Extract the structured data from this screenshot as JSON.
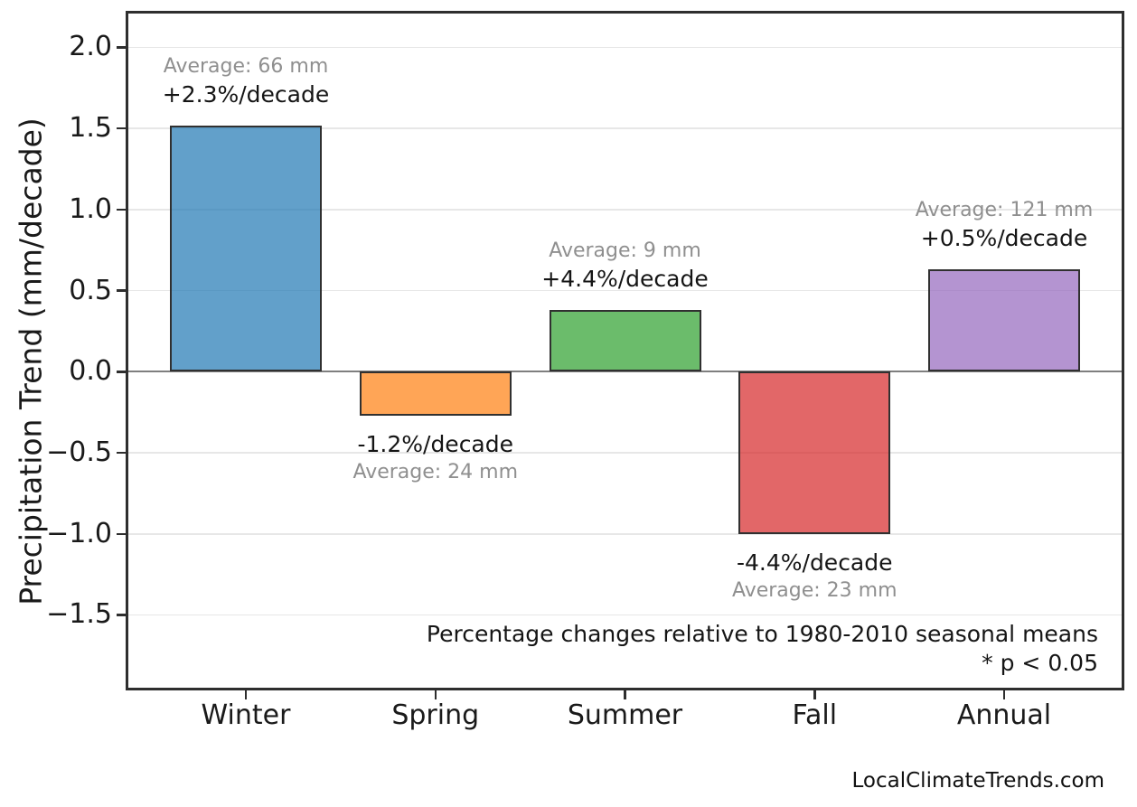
{
  "watermark": "LocalClimateTrends.com",
  "chart_data": {
    "type": "bar",
    "title": "",
    "xlabel": "",
    "ylabel": "Precipitation Trend (mm/decade)",
    "ylim": [
      -1.96,
      2.22
    ],
    "grid": "horizontal",
    "legend": false,
    "zero_line": true,
    "yticks": [
      {
        "value": 2.0,
        "label": "2.0"
      },
      {
        "value": 1.5,
        "label": "1.5"
      },
      {
        "value": 1.0,
        "label": "1.0"
      },
      {
        "value": 0.5,
        "label": "0.5"
      },
      {
        "value": 0.0,
        "label": "0.0"
      },
      {
        "value": -0.5,
        "label": "−0.5"
      },
      {
        "value": -1.0,
        "label": "−1.0"
      },
      {
        "value": -1.5,
        "label": "−1.5"
      }
    ],
    "categories": [
      "Winter",
      "Spring",
      "Summer",
      "Fall",
      "Annual"
    ],
    "bar_alpha": 0.7,
    "bars": [
      {
        "category": "Winter",
        "value": 1.52,
        "color": "#1f77b4",
        "avg_label": "Average: 66 mm",
        "trend_label": "+2.3%/decade"
      },
      {
        "category": "Spring",
        "value": -0.27,
        "color": "#ff7f0e",
        "avg_label": "Average: 24 mm",
        "trend_label": "-1.2%/decade"
      },
      {
        "category": "Summer",
        "value": 0.38,
        "color": "#2ca02c",
        "avg_label": "Average: 9 mm",
        "trend_label": "+4.4%/decade"
      },
      {
        "category": "Fall",
        "value": -1.0,
        "color": "#d62728",
        "avg_label": "Average: 23 mm",
        "trend_label": "-4.4%/decade"
      },
      {
        "category": "Annual",
        "value": 0.63,
        "color": "#9467bd",
        "avg_label": "Average: 121 mm",
        "trend_label": "+0.5%/decade"
      }
    ],
    "annotations": {
      "footnote_line1": "Percentage changes relative to 1980-2010 seasonal means",
      "footnote_line2": "* p < 0.05"
    },
    "style_colors": {
      "frame": "#2e2e2e",
      "grid": "#e7e7e7",
      "zero_line": "#7f7f7f",
      "bar_edge": "#303030",
      "gray_text": "#8f8f8f",
      "black_text": "#151515"
    }
  }
}
